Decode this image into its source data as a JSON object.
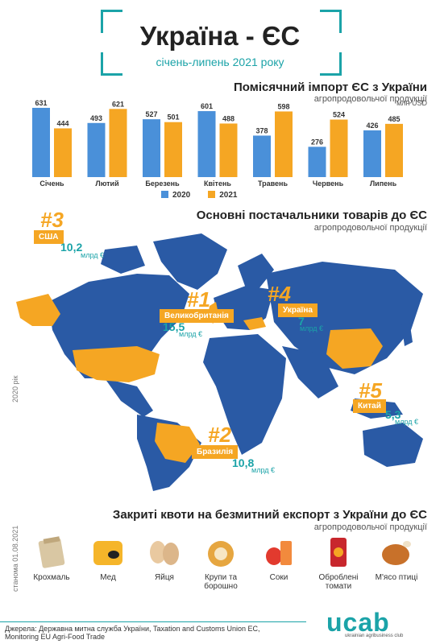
{
  "header": {
    "title": "Україна - ЄС",
    "subtitle": "січень-липень 2021 року"
  },
  "chart_data": {
    "type": "bar",
    "title": "Помісячний імпорт ЄС з України",
    "subtitle": "агропродовольчої продукції",
    "unit": "млн USD",
    "categories": [
      "Січень",
      "Лютий",
      "Березень",
      "Квітень",
      "Травень",
      "Червень",
      "Липень"
    ],
    "series": [
      {
        "name": "2020",
        "color": "#4a90d9",
        "values": [
          631,
          493,
          527,
          601,
          378,
          276,
          426
        ]
      },
      {
        "name": "2021",
        "color": "#f5a623",
        "values": [
          444,
          621,
          501,
          488,
          598,
          524,
          485
        ]
      }
    ],
    "ylim": [
      0,
      660
    ],
    "legend_position": "bottom"
  },
  "suppliers": {
    "title": "Основні постачальники товарів до ЄС",
    "subtitle": "агропродовольчої продукції",
    "year_label": "2020 рік",
    "items": [
      {
        "rank": "#1",
        "country": "Великобританія",
        "value": "15,5",
        "unit": "млрд €"
      },
      {
        "rank": "#2",
        "country": "Бразилія",
        "value": "10,8",
        "unit": "млрд €"
      },
      {
        "rank": "#3",
        "country": "США",
        "value": "10,2",
        "unit": "млрд €"
      },
      {
        "rank": "#4",
        "country": "Україна",
        "value": "7",
        "unit": "млрд €"
      },
      {
        "rank": "#5",
        "country": "Китай",
        "value": "5,3",
        "unit": "млрд €"
      }
    ]
  },
  "quotas": {
    "title": "Закриті квоти на безмитний експорт з України до ЄС",
    "subtitle": "агропродовольчої продукції",
    "date_label": "станома 01.08.2021",
    "items": [
      {
        "label": "Крохмаль",
        "icon": "starch-bag-icon"
      },
      {
        "label": "Мед",
        "icon": "honey-bee-icon"
      },
      {
        "label": "Яйця",
        "icon": "eggs-icon"
      },
      {
        "label": "Крупи та борошно",
        "icon": "grain-flour-icon"
      },
      {
        "label": "Соки",
        "icon": "juice-icon"
      },
      {
        "label": "Оброблені томати",
        "icon": "tomato-can-icon"
      },
      {
        "label": "М'ясо птиці",
        "icon": "poultry-icon"
      }
    ]
  },
  "footer": {
    "sources_line1": "Джерела: Державна митна служба України, Taxation and Customs Union EC,",
    "sources_line2": "Monitoring EU Agri-Food Trade",
    "logo": "ucab",
    "logo_sub": "ukrainian agribusiness club"
  },
  "colors": {
    "accent": "#1ba3a8",
    "blue": "#4a90d9",
    "orange": "#f5a623",
    "map": "#2a5aa5"
  }
}
